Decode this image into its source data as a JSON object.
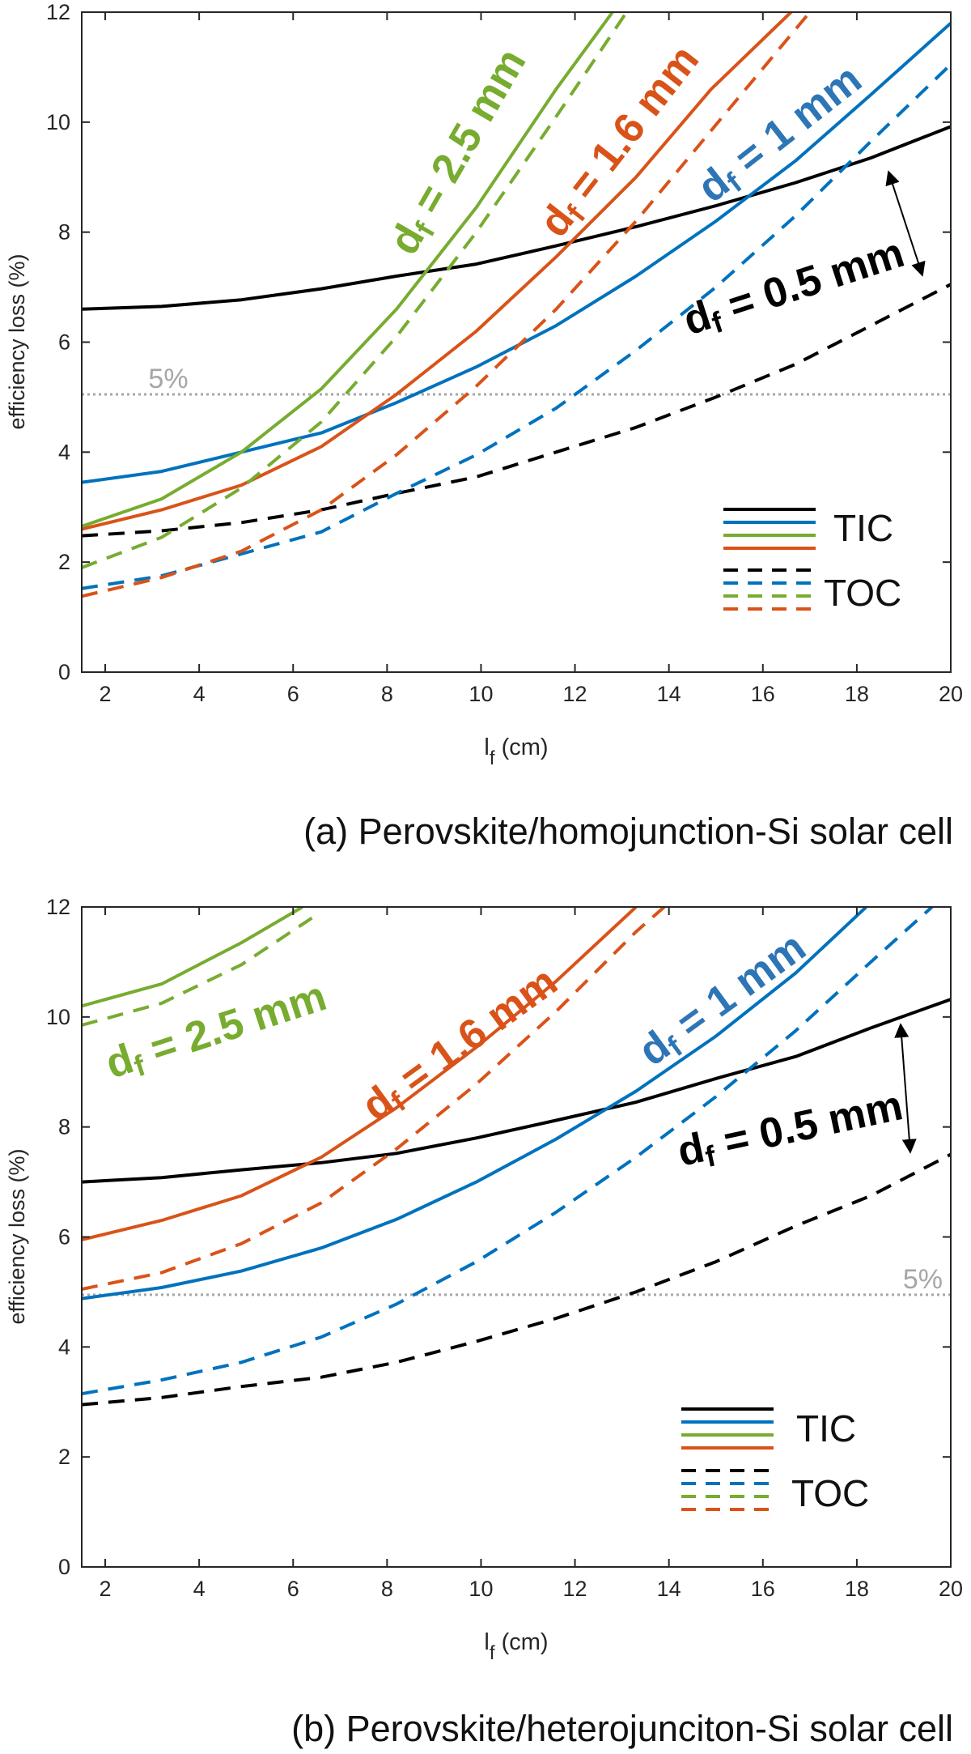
{
  "chart_data": [
    {
      "type": "line",
      "caption": "(a) Perovskite/homojunction-Si solar cell",
      "xlabel": "l",
      "xlabel_sub": "f",
      "xlabel_unit": " (cm)",
      "ylabel": "efficiency loss (%)",
      "xlim": [
        1.5,
        20
      ],
      "ylim": [
        0,
        12
      ],
      "xticks": [
        2,
        4,
        6,
        8,
        10,
        12,
        14,
        16,
        18,
        20
      ],
      "yticks": [
        0,
        2,
        4,
        6,
        8,
        10,
        12
      ],
      "reference_line": {
        "y": 5.05,
        "label": "5%"
      },
      "legend": {
        "position": "bottom-right",
        "entries": [
          "TIC",
          "TOC"
        ]
      },
      "series": [
        {
          "name": "TIC d_f = 0.5 mm",
          "color": "#000000",
          "style": "solid",
          "x": [
            1.5,
            3.2,
            4.9,
            6.6,
            8.2,
            9.9,
            11.6,
            13.3,
            15.0,
            16.7,
            18.3,
            20.0
          ],
          "y": [
            6.6,
            6.65,
            6.77,
            6.97,
            7.2,
            7.42,
            7.75,
            8.1,
            8.48,
            8.9,
            9.35,
            9.92
          ]
        },
        {
          "name": "TIC d_f = 1 mm",
          "color": "#0072BD",
          "style": "solid",
          "x": [
            1.5,
            3.2,
            4.9,
            6.6,
            8.2,
            9.9,
            11.6,
            13.3,
            15.0,
            16.7,
            18.3,
            20.0
          ],
          "y": [
            3.45,
            3.65,
            4.0,
            4.35,
            4.9,
            5.55,
            6.3,
            7.2,
            8.2,
            9.3,
            10.5,
            11.8
          ]
        },
        {
          "name": "TIC d_f = 1.6 mm",
          "color": "#D95319",
          "style": "solid",
          "x": [
            1.5,
            3.2,
            4.9,
            6.6,
            8.2,
            9.9,
            11.6,
            13.3,
            14.9,
            16.6
          ],
          "y": [
            2.6,
            2.95,
            3.4,
            4.1,
            5.05,
            6.2,
            7.55,
            9.0,
            10.6,
            12.0
          ]
        },
        {
          "name": "TIC d_f = 2.5 mm",
          "color": "#77AC30",
          "style": "solid",
          "x": [
            1.5,
            3.2,
            4.9,
            6.6,
            8.2,
            9.9,
            11.6,
            12.8
          ],
          "y": [
            2.65,
            3.15,
            4.0,
            5.15,
            6.6,
            8.45,
            10.6,
            12.0
          ]
        },
        {
          "name": "TOC d_f = 0.5 mm",
          "color": "#000000",
          "style": "dashed",
          "x": [
            1.5,
            3.2,
            4.9,
            6.6,
            8.2,
            9.9,
            11.6,
            13.3,
            15.0,
            16.7,
            18.3,
            20.0
          ],
          "y": [
            2.48,
            2.57,
            2.72,
            2.95,
            3.25,
            3.55,
            4.0,
            4.45,
            5.0,
            5.6,
            6.3,
            7.05
          ]
        },
        {
          "name": "TOC d_f = 1 mm",
          "color": "#0072BD",
          "style": "dashed",
          "x": [
            1.5,
            3.2,
            4.9,
            6.6,
            8.2,
            9.9,
            11.6,
            13.3,
            15.0,
            16.7,
            18.3,
            20.0
          ],
          "y": [
            1.52,
            1.75,
            2.15,
            2.55,
            3.25,
            3.95,
            4.8,
            5.85,
            7.0,
            8.3,
            9.65,
            11.05
          ]
        },
        {
          "name": "TOC d_f = 1.6 mm",
          "color": "#D95319",
          "style": "dashed",
          "x": [
            1.5,
            3.2,
            4.9,
            6.6,
            8.2,
            9.9,
            11.6,
            13.3,
            15.0,
            17.0
          ],
          "y": [
            1.38,
            1.72,
            2.2,
            2.95,
            3.95,
            5.2,
            6.6,
            8.2,
            9.95,
            12.0
          ]
        },
        {
          "name": "TOC d_f = 2.5 mm",
          "color": "#77AC30",
          "style": "dashed",
          "x": [
            1.5,
            3.2,
            4.9,
            6.6,
            8.2,
            9.9,
            11.6,
            13.1
          ],
          "y": [
            1.9,
            2.45,
            3.35,
            4.55,
            6.1,
            8.0,
            10.1,
            12.0
          ]
        }
      ],
      "annotations": [
        {
          "text_main": "d",
          "text_sub": "f",
          "text_rest": " = 2.5 mm",
          "color": "#77AC30"
        },
        {
          "text_main": "d",
          "text_sub": "f",
          "text_rest": " = 1.6 mm",
          "color": "#D95319"
        },
        {
          "text_main": "d",
          "text_sub": "f",
          "text_rest": " = 1 mm",
          "color": "#0072BD"
        },
        {
          "text_main": "d",
          "text_sub": "f",
          "text_rest": " = 0.5 mm",
          "color": "#000000"
        }
      ]
    },
    {
      "type": "line",
      "caption": "(b) Perovskite/heterojunciton-Si solar cell",
      "xlabel": "l",
      "xlabel_sub": "f",
      "xlabel_unit": " (cm)",
      "ylabel": "efficiency loss (%)",
      "xlim": [
        1.5,
        20
      ],
      "ylim": [
        0,
        12
      ],
      "xticks": [
        2,
        4,
        6,
        8,
        10,
        12,
        14,
        16,
        18,
        20
      ],
      "yticks": [
        0,
        2,
        4,
        6,
        8,
        10,
        12
      ],
      "reference_line": {
        "y": 4.95,
        "label": "5%"
      },
      "legend": {
        "position": "bottom-right",
        "entries": [
          "TIC",
          "TOC"
        ]
      },
      "series": [
        {
          "name": "TIC d_f = 0.5 mm",
          "color": "#000000",
          "style": "solid",
          "x": [
            1.5,
            3.2,
            4.9,
            6.6,
            8.2,
            9.9,
            11.6,
            13.3,
            15.0,
            16.7,
            18.3,
            20.0
          ],
          "y": [
            7.0,
            7.08,
            7.22,
            7.35,
            7.52,
            7.8,
            8.12,
            8.45,
            8.88,
            9.28,
            9.8,
            10.32
          ]
        },
        {
          "name": "TIC d_f = 1 mm",
          "color": "#0072BD",
          "style": "solid",
          "x": [
            1.5,
            3.2,
            4.9,
            6.6,
            8.2,
            9.9,
            11.6,
            13.3,
            15.0,
            16.7,
            18.2
          ],
          "y": [
            4.88,
            5.08,
            5.38,
            5.8,
            6.32,
            7.0,
            7.78,
            8.65,
            9.65,
            10.8,
            12.0
          ]
        },
        {
          "name": "TIC d_f = 1.6 mm",
          "color": "#D95319",
          "style": "solid",
          "x": [
            1.5,
            3.2,
            4.9,
            6.6,
            8.2,
            9.9,
            11.6,
            13.3
          ],
          "y": [
            5.95,
            6.3,
            6.75,
            7.45,
            8.35,
            9.45,
            10.65,
            12.0
          ]
        },
        {
          "name": "TIC d_f = 2.5 mm",
          "color": "#77AC30",
          "style": "solid",
          "x": [
            1.5,
            3.2,
            4.9,
            6.2
          ],
          "y": [
            10.2,
            10.6,
            11.35,
            12.0
          ]
        },
        {
          "name": "TOC d_f = 0.5 mm",
          "color": "#000000",
          "style": "dashed",
          "x": [
            1.5,
            3.2,
            4.9,
            6.6,
            8.2,
            9.9,
            11.6,
            13.3,
            15.0,
            16.7,
            18.3,
            20.0
          ],
          "y": [
            2.95,
            3.08,
            3.28,
            3.45,
            3.72,
            4.1,
            4.52,
            5.0,
            5.55,
            6.2,
            6.75,
            7.5
          ]
        },
        {
          "name": "TOC d_f = 1 mm",
          "color": "#0072BD",
          "style": "dashed",
          "x": [
            1.5,
            3.2,
            4.9,
            6.6,
            8.2,
            9.9,
            11.6,
            13.3,
            15.0,
            16.7,
            18.3,
            19.6
          ],
          "y": [
            3.15,
            3.4,
            3.72,
            4.18,
            4.78,
            5.55,
            6.45,
            7.45,
            8.55,
            9.75,
            11.0,
            12.0
          ]
        },
        {
          "name": "TOC d_f = 1.6 mm",
          "color": "#D95319",
          "style": "dashed",
          "x": [
            1.5,
            3.2,
            4.9,
            6.6,
            8.2,
            9.9,
            11.6,
            13.3,
            13.9
          ],
          "y": [
            5.05,
            5.35,
            5.88,
            6.62,
            7.6,
            8.78,
            10.1,
            11.55,
            12.0
          ]
        },
        {
          "name": "TOC d_f = 2.5 mm",
          "color": "#77AC30",
          "style": "dashed",
          "x": [
            1.5,
            3.2,
            4.9,
            6.4
          ],
          "y": [
            9.85,
            10.25,
            10.95,
            11.8
          ]
        }
      ],
      "annotations": [
        {
          "text_main": "d",
          "text_sub": "f",
          "text_rest": " = 2.5 mm",
          "color": "#77AC30"
        },
        {
          "text_main": "d",
          "text_sub": "f",
          "text_rest": " = 1.6 mm",
          "color": "#D95319"
        },
        {
          "text_main": "d",
          "text_sub": "f",
          "text_rest": " = 1 mm",
          "color": "#0072BD"
        },
        {
          "text_main": "d",
          "text_sub": "f",
          "text_rest": " = 0.5 mm",
          "color": "#000000"
        }
      ]
    }
  ]
}
